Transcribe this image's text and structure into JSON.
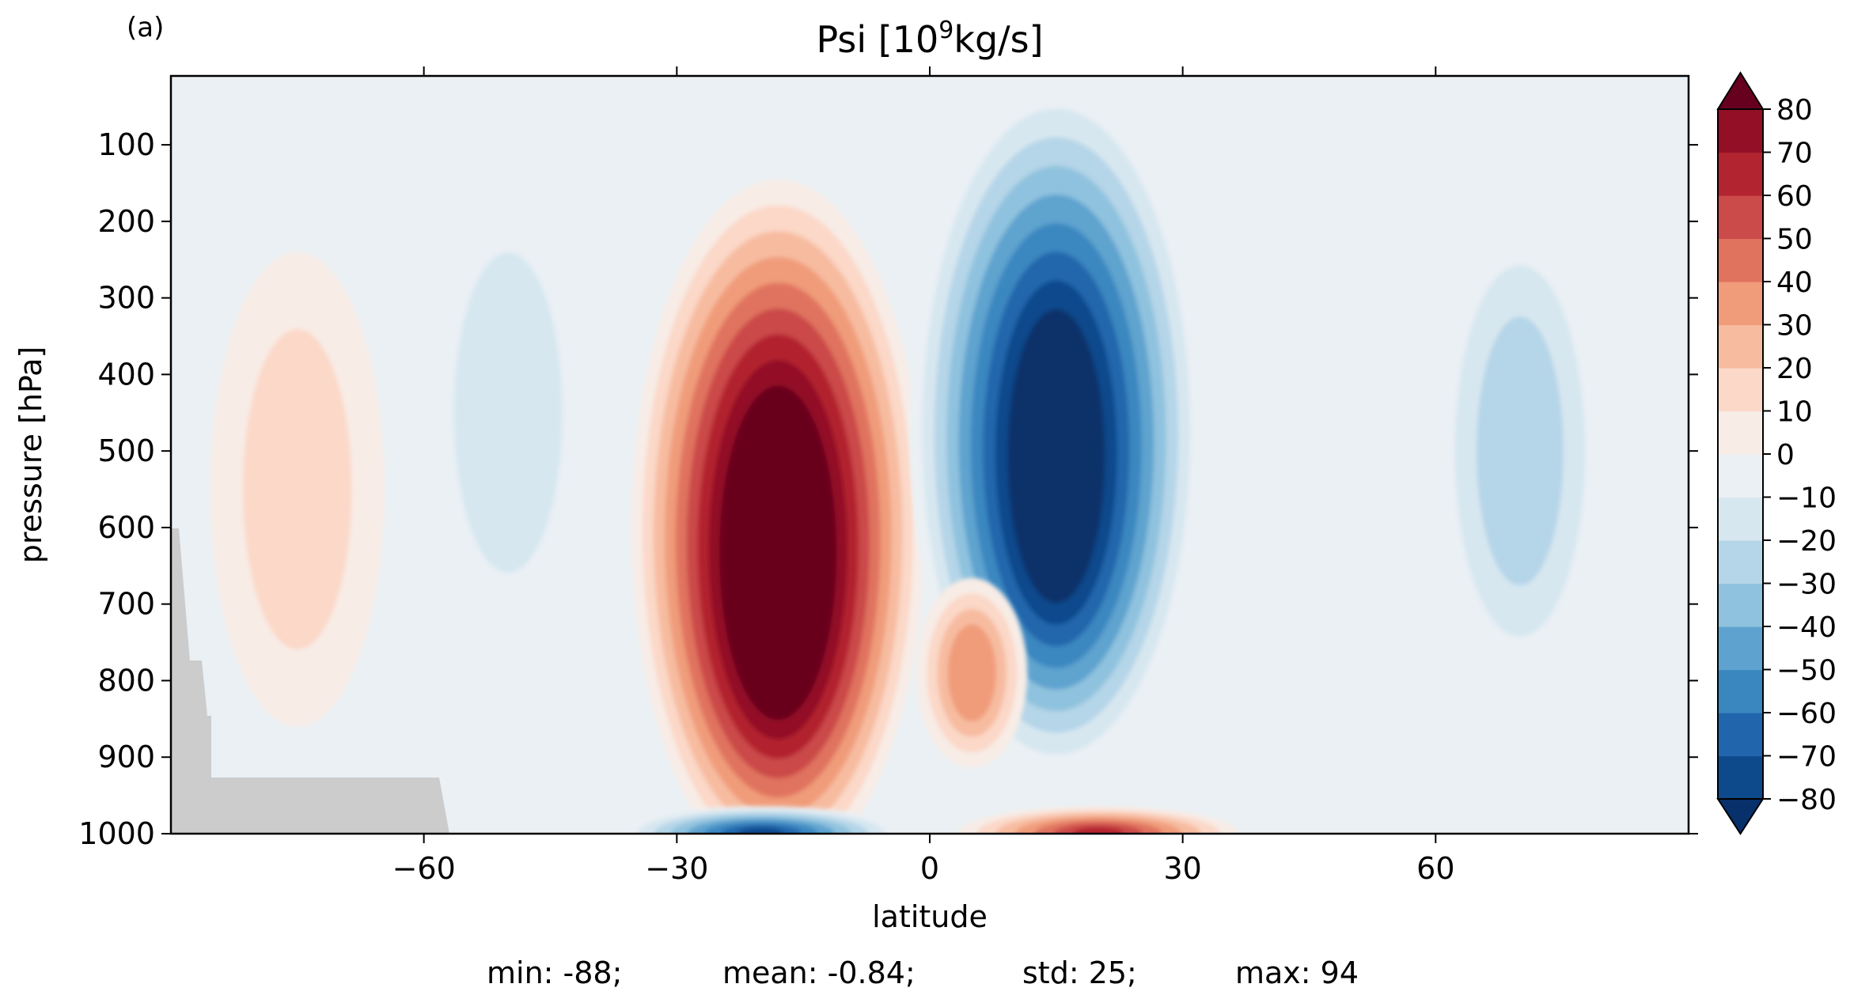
{
  "panel_label": "(a)",
  "chart_data": {
    "type": "contourf",
    "title": {
      "prefix": "Psi [10",
      "superscript": "9",
      "suffix": "kg/s]"
    },
    "xlabel": "latitude",
    "ylabel": "pressure [hPa]",
    "xlim": [
      -90,
      90
    ],
    "ylim": [
      1000,
      10
    ],
    "y_inverted": true,
    "x_ticks": [
      -60,
      -30,
      0,
      30,
      60
    ],
    "x_tick_labels": [
      "−60",
      "−30",
      "0",
      "30",
      "60"
    ],
    "y_ticks": [
      100,
      200,
      300,
      400,
      500,
      600,
      700,
      800,
      900,
      1000
    ],
    "y_tick_labels": [
      "100",
      "200",
      "300",
      "400",
      "500",
      "600",
      "700",
      "800",
      "900",
      "1000"
    ],
    "colorbar": {
      "levels": [
        -80,
        -70,
        -60,
        -50,
        -40,
        -30,
        -20,
        -10,
        0,
        10,
        20,
        30,
        40,
        50,
        60,
        70,
        80
      ],
      "tick_labels": [
        "−80",
        "−70",
        "−60",
        "−50",
        "−40",
        "−30",
        "−20",
        "−10",
        "0",
        "10",
        "20",
        "30",
        "40",
        "50",
        "60",
        "70",
        "80"
      ],
      "extend": "both",
      "colormap": "RdBu_r",
      "colors": [
        "#08306b",
        "#0d4a8c",
        "#2166ac",
        "#3a87c0",
        "#5ea3cf",
        "#8fc2de",
        "#b5d5e8",
        "#d7e7f0",
        "#eaf0f4",
        "#f8ece6",
        "#fbd8c8",
        "#f7bca0",
        "#f09c7a",
        "#e0735e",
        "#cb4a4a",
        "#b2242f",
        "#930f26",
        "#67001f"
      ],
      "over_color": "#67001f",
      "under_color": "#08306b"
    },
    "features": [
      {
        "name": "positive cell, southern hemisphere",
        "center_lat": -18,
        "center_pressure": 600,
        "peak": 94
      },
      {
        "name": "negative cell, northern hemisphere",
        "center_lat": 15,
        "center_pressure": 470,
        "peak": -88
      },
      {
        "name": "negative near-surface cell",
        "center_lat": -20,
        "center_pressure": 990,
        "peak": -80
      },
      {
        "name": "positive near-surface cell",
        "center_lat": 20,
        "center_pressure": 990,
        "peak": 70
      },
      {
        "name": "weak positive lobe",
        "center_lat": 5,
        "center_pressure": 790,
        "peak": 35
      },
      {
        "name": "weak negative lobe, southern midlatitudes",
        "center_lat": -50,
        "center_pressure": 450,
        "peak": -15
      },
      {
        "name": "weak negative lobe, northern midlatitudes",
        "center_lat": 70,
        "center_pressure": 500,
        "peak": -22
      },
      {
        "name": "weak positive lobe, southern high latitudes",
        "center_lat": -75,
        "center_pressure": 550,
        "peak": 12
      }
    ]
  },
  "stats": {
    "min": "min: -88;",
    "mean": "mean: -0.84;",
    "std": "std: 25;",
    "max": "max: 94"
  }
}
